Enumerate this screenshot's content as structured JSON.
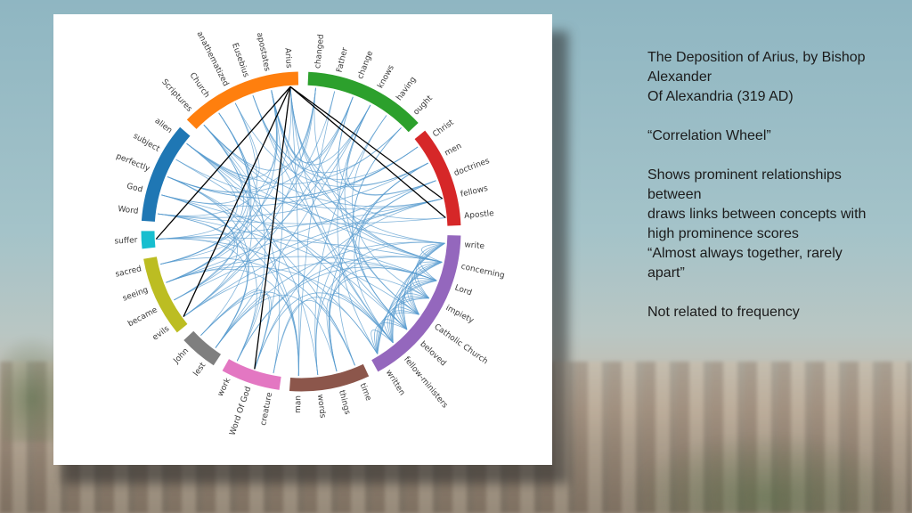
{
  "notes": {
    "title_lines": [
      "The Deposition of Arius, by Bishop",
      "Alexander",
      "Of Alexandria (319 AD)"
    ],
    "subtitle": "“Correlation Wheel”",
    "description_lines": [
      "Shows prominent relationships",
      "between",
      "draws links between concepts with",
      "high prominence scores",
      "“Almost always together, rarely",
      "apart”"
    ],
    "footer": "Not related to frequency"
  },
  "wheel": {
    "groups": [
      {
        "color": "#17becf",
        "words": [
          "suffer"
        ]
      },
      {
        "color": "#1f77b4",
        "words": [
          "Word",
          "God",
          "perfectly",
          "subject",
          "alien"
        ]
      },
      {
        "color": "#ff7f0e",
        "words": [
          "Scriptures",
          "Church",
          "anathematized",
          "Eusebius",
          "apostates",
          "Arius"
        ]
      },
      {
        "color": "#2ca02c",
        "words": [
          "changed",
          "Father",
          "change",
          "knows",
          "having",
          "ought"
        ]
      },
      {
        "color": "#d62728",
        "words": [
          "Christ",
          "men",
          "doctrines",
          "fellows",
          "Apostle"
        ]
      },
      {
        "color": "#9467bd",
        "words": [
          "write",
          "concerning",
          "Lord",
          "impiety",
          "Catholic Church",
          "beloved",
          "fellow-ministers",
          "written"
        ]
      },
      {
        "color": "#8c564b",
        "words": [
          "time",
          "things",
          "words",
          "man"
        ]
      },
      {
        "color": "#e377c2",
        "words": [
          "creature",
          "Word Of God",
          "work"
        ]
      },
      {
        "color": "#7f7f7f",
        "words": [
          "lest",
          "John"
        ]
      },
      {
        "color": "#bcbd22",
        "words": [
          "evils",
          "became",
          "seeing",
          "sacred"
        ]
      }
    ]
  }
}
